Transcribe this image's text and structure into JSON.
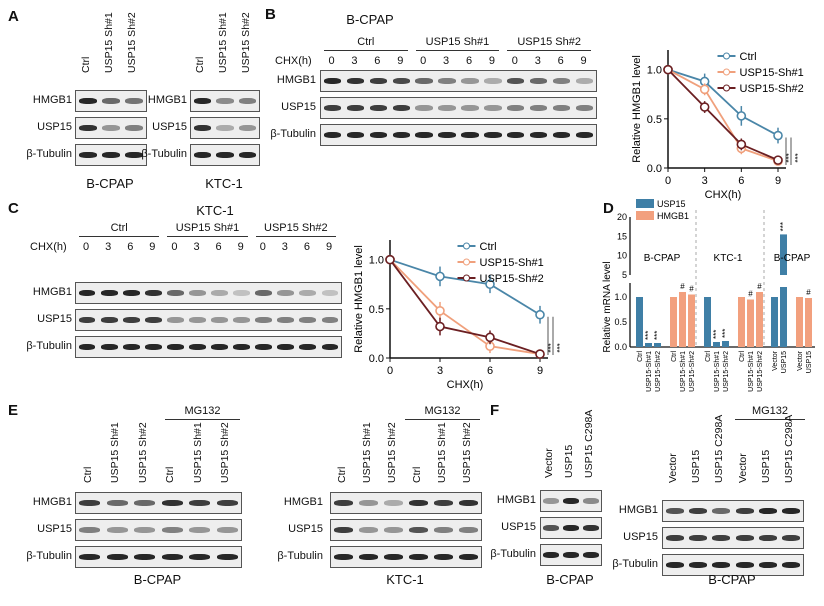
{
  "panels": {
    "A": "A",
    "B": "B",
    "C": "C",
    "D": "D",
    "E": "E",
    "F": "F"
  },
  "rows": {
    "hmgb1": "HMGB1",
    "usp15": "USP15",
    "tubulin": "β-Tubulin"
  },
  "cells": {
    "bcpap": "B-CPAP",
    "ktc1": "KTC-1"
  },
  "lanes": {
    "ctrl": "Ctrl",
    "sh1": "USP15 Sh#1",
    "sh2": "USP15 Sh#2",
    "vector": "Vector",
    "usp15": "USP15",
    "c298a": "USP15 C298A"
  },
  "chx_label": "CHX(h)",
  "chx_times": [
    "0",
    "3",
    "6",
    "9",
    "0",
    "3",
    "6",
    "9",
    "0",
    "3",
    "6",
    "9"
  ],
  "mg132": "MG132",
  "colors": {
    "ctrl": "#4a86a8",
    "sh1": "#f0a07c",
    "sh2": "#6b1f22",
    "usp15_bar": "#3f7fa6",
    "hmgb1_bar": "#f2a07e"
  },
  "chart_data": [
    {
      "type": "line",
      "panel": "B",
      "xlabel": "CHX(h)",
      "ylabel": "Relative  HMGB1 level",
      "x": [
        0,
        3,
        6,
        9
      ],
      "xlim": [
        0,
        9
      ],
      "ylim": [
        0,
        1.2
      ],
      "yticks": [
        "0.0",
        "0.5",
        "1.0"
      ],
      "xticks": [
        "0",
        "3",
        "6",
        "9"
      ],
      "series": [
        {
          "name": "Ctrl",
          "values": [
            1.0,
            0.88,
            0.53,
            0.33
          ],
          "err": [
            0,
            0.08,
            0.1,
            0.08
          ]
        },
        {
          "name": "USP15-Sh#1",
          "values": [
            1.0,
            0.8,
            0.2,
            0.07
          ],
          "err": [
            0,
            0.06,
            0.06,
            0.04
          ]
        },
        {
          "name": "USP15-Sh#2",
          "values": [
            1.0,
            0.62,
            0.24,
            0.08
          ],
          "err": [
            0,
            0.06,
            0.06,
            0.04
          ]
        }
      ],
      "annotations": [
        "***",
        "***"
      ],
      "legend": "top-right"
    },
    {
      "type": "line",
      "panel": "C",
      "xlabel": "CHX(h)",
      "ylabel": "Relative  HMGB1 level",
      "x": [
        0,
        3,
        6,
        9
      ],
      "xlim": [
        0,
        9
      ],
      "ylim": [
        0,
        1.2
      ],
      "yticks": [
        "0.0",
        "0.5",
        "1.0"
      ],
      "xticks": [
        "0",
        "3",
        "6",
        "9"
      ],
      "series": [
        {
          "name": "Ctrl",
          "values": [
            1.0,
            0.83,
            0.75,
            0.44
          ],
          "err": [
            0,
            0.1,
            0.09,
            0.09
          ]
        },
        {
          "name": "USP15-Sh#1",
          "values": [
            1.0,
            0.48,
            0.12,
            0.04
          ],
          "err": [
            0,
            0.09,
            0.07,
            0.03
          ]
        },
        {
          "name": "USP15-Sh#2",
          "values": [
            1.0,
            0.32,
            0.21,
            0.04
          ],
          "err": [
            0,
            0.09,
            0.07,
            0.03
          ]
        }
      ],
      "annotations": [
        "***",
        "***"
      ],
      "legend": "top-right"
    },
    {
      "type": "bar",
      "panel": "D",
      "ylabel": "Relative mRNA level",
      "yticks_low": [
        "0.0",
        "0.5",
        "1.0"
      ],
      "yticks_high": [
        "5",
        "10",
        "15",
        "20"
      ],
      "legend_entries": [
        "USP15",
        "HMGB1"
      ],
      "group_labels": [
        "B-CPAP",
        "KTC-1",
        "B-CPAP"
      ],
      "bars": [
        {
          "cat": "Ctrl",
          "series": "USP15",
          "value": 1.0,
          "mark": ""
        },
        {
          "cat": "USP15-Sh#1",
          "series": "USP15",
          "value": 0.08,
          "mark": "***"
        },
        {
          "cat": "USP15-Sh#2",
          "series": "USP15",
          "value": 0.08,
          "mark": "***"
        },
        {
          "cat": "Ctrl",
          "series": "HMGB1",
          "value": 1.0,
          "mark": ""
        },
        {
          "cat": "USP15-Sh#1",
          "series": "HMGB1",
          "value": 1.1,
          "mark": "#"
        },
        {
          "cat": "USP15-Sh#2",
          "series": "HMGB1",
          "value": 1.05,
          "mark": "#"
        },
        {
          "cat": "Ctrl",
          "series": "USP15",
          "value": 1.0,
          "mark": ""
        },
        {
          "cat": "USP15-Sh#1",
          "series": "USP15",
          "value": 0.1,
          "mark": "***"
        },
        {
          "cat": "USP15-Sh#2",
          "series": "USP15",
          "value": 0.12,
          "mark": "***"
        },
        {
          "cat": "Ctrl",
          "series": "HMGB1",
          "value": 1.0,
          "mark": ""
        },
        {
          "cat": "USP15-Sh#1",
          "series": "HMGB1",
          "value": 0.95,
          "mark": "#"
        },
        {
          "cat": "USP15-Sh#2",
          "series": "HMGB1",
          "value": 1.1,
          "mark": "#"
        },
        {
          "cat": "Vector",
          "series": "USP15",
          "value": 1.0,
          "mark": ""
        },
        {
          "cat": "USP15",
          "series": "USP15",
          "value": 15.5,
          "mark": "***"
        },
        {
          "cat": "Vector",
          "series": "HMGB1",
          "value": 1.0,
          "mark": ""
        },
        {
          "cat": "USP15",
          "series": "HMGB1",
          "value": 0.98,
          "mark": "#"
        }
      ]
    }
  ]
}
